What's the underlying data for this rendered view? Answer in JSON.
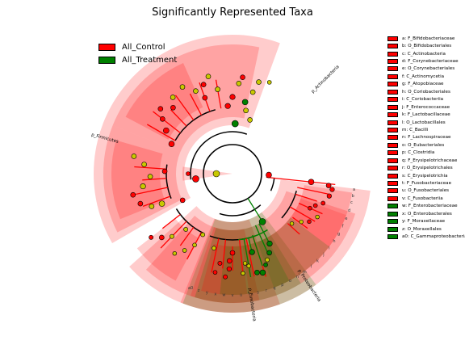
{
  "chart_data": {
    "type": "cladogram",
    "title": "Significantly Represented Taxa",
    "colors": {
      "All_Control": "#ff0000",
      "All_Treatment": "#008000",
      "nonsignificant": "#c8c800"
    },
    "groups": [
      {
        "name": "All_Control",
        "color": "#ff0000"
      },
      {
        "name": "All_Treatment",
        "color": "#008000"
      }
    ],
    "phyla": [
      {
        "label": "p_Actinobacteria",
        "group": "All_Control"
      },
      {
        "label": "p_Fusobacteria",
        "group": "All_Control"
      },
      {
        "label": "p_Firmicutes",
        "group": "All_Control"
      },
      {
        "label": "p_Proteobacteria",
        "group": "All_Treatment"
      }
    ],
    "sector_letters": [
      "a",
      "b",
      "c",
      "d",
      "e",
      "f",
      "g",
      "h",
      "i",
      "j",
      "k",
      "l",
      "m",
      "n",
      "o",
      "p",
      "q",
      "r",
      "s",
      "t",
      "u",
      "v",
      "w",
      "x",
      "y",
      "z",
      "a0"
    ],
    "legend": [
      {
        "code": "a",
        "name": "F_Bifidobacteriaceae",
        "group": "All_Control"
      },
      {
        "code": "b",
        "name": "O_Bifidobacteriales",
        "group": "All_Control"
      },
      {
        "code": "c",
        "name": "C_Actinobacteria",
        "group": "All_Control"
      },
      {
        "code": "d",
        "name": "F_Corynebacteriaceae",
        "group": "All_Control"
      },
      {
        "code": "e",
        "name": "O_Corynebacteriales",
        "group": "All_Control"
      },
      {
        "code": "f",
        "name": "C_Actinomycetia",
        "group": "All_Control"
      },
      {
        "code": "g",
        "name": "F_Atopobiaceae",
        "group": "All_Control"
      },
      {
        "code": "h",
        "name": "O_Coriobacteriales",
        "group": "All_Control"
      },
      {
        "code": "i",
        "name": "C_Coriobacteriia",
        "group": "All_Control"
      },
      {
        "code": "j",
        "name": "F_Enterococcaceae",
        "group": "All_Control"
      },
      {
        "code": "k",
        "name": "F_Lactobacillaceae",
        "group": "All_Control"
      },
      {
        "code": "l",
        "name": "O_Lactobacillales",
        "group": "All_Control"
      },
      {
        "code": "m",
        "name": "C_Bacilli",
        "group": "All_Control"
      },
      {
        "code": "n",
        "name": "F_Lachnospiraceae",
        "group": "All_Control"
      },
      {
        "code": "o",
        "name": "O_Eubacteriales",
        "group": "All_Control"
      },
      {
        "code": "p",
        "name": "C_Clostridia",
        "group": "All_Control"
      },
      {
        "code": "q",
        "name": "F_Erysipelotrichaceae",
        "group": "All_Control"
      },
      {
        "code": "r",
        "name": "O_Erysipelotrichales",
        "group": "All_Control"
      },
      {
        "code": "s",
        "name": "C_Erysipelotrichia",
        "group": "All_Control"
      },
      {
        "code": "t",
        "name": "F_Fusobacteriaceae",
        "group": "All_Control"
      },
      {
        "code": "u",
        "name": "O_Fusobacteriales",
        "group": "All_Control"
      },
      {
        "code": "v",
        "name": "C_Fusobacteriia",
        "group": "All_Control"
      },
      {
        "code": "w",
        "name": "F_Enterobacteriaceae",
        "group": "All_Treatment"
      },
      {
        "code": "x",
        "name": "O_Enterobacterales",
        "group": "All_Treatment"
      },
      {
        "code": "y",
        "name": "F_Moraxellaceae",
        "group": "All_Treatment"
      },
      {
        "code": "z",
        "name": "O_Moraxellales",
        "group": "All_Treatment"
      },
      {
        "code": "a0",
        "name": "C_Gammaproteobacteria",
        "group": "All_Treatment"
      }
    ]
  }
}
